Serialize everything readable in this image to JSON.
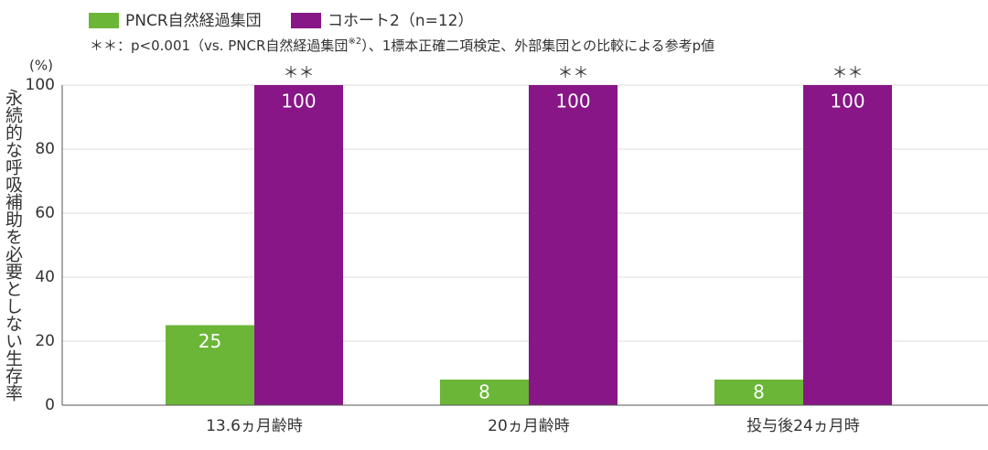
{
  "chart_data": {
    "type": "bar",
    "note": [
      "＊＊：p<0.001（vs. PNCR自然経過集団",
      "※2",
      "）、1標本正確二項検定、外部集団との比較による参考p値"
    ],
    "y_label": "永続的な呼吸補助を必要としない生存率",
    "y_unit": "(%)",
    "categories": [
      "13.6ヵ月齢時",
      "20ヵ月齢時",
      "投与後24ヵ月時"
    ],
    "series": [
      {
        "name": "PNCR自然経過集団",
        "color": "#6bb637",
        "values": [
          25,
          8,
          8
        ]
      },
      {
        "name": "コホート2（n=12）",
        "color": "#881687",
        "values": [
          100,
          100,
          100
        ],
        "annotations": [
          "＊＊",
          "＊＊",
          "＊＊"
        ]
      }
    ],
    "ylim": [
      0,
      100
    ],
    "yticks": [
      0,
      20,
      40,
      60,
      80,
      100
    ],
    "grid": true
  }
}
